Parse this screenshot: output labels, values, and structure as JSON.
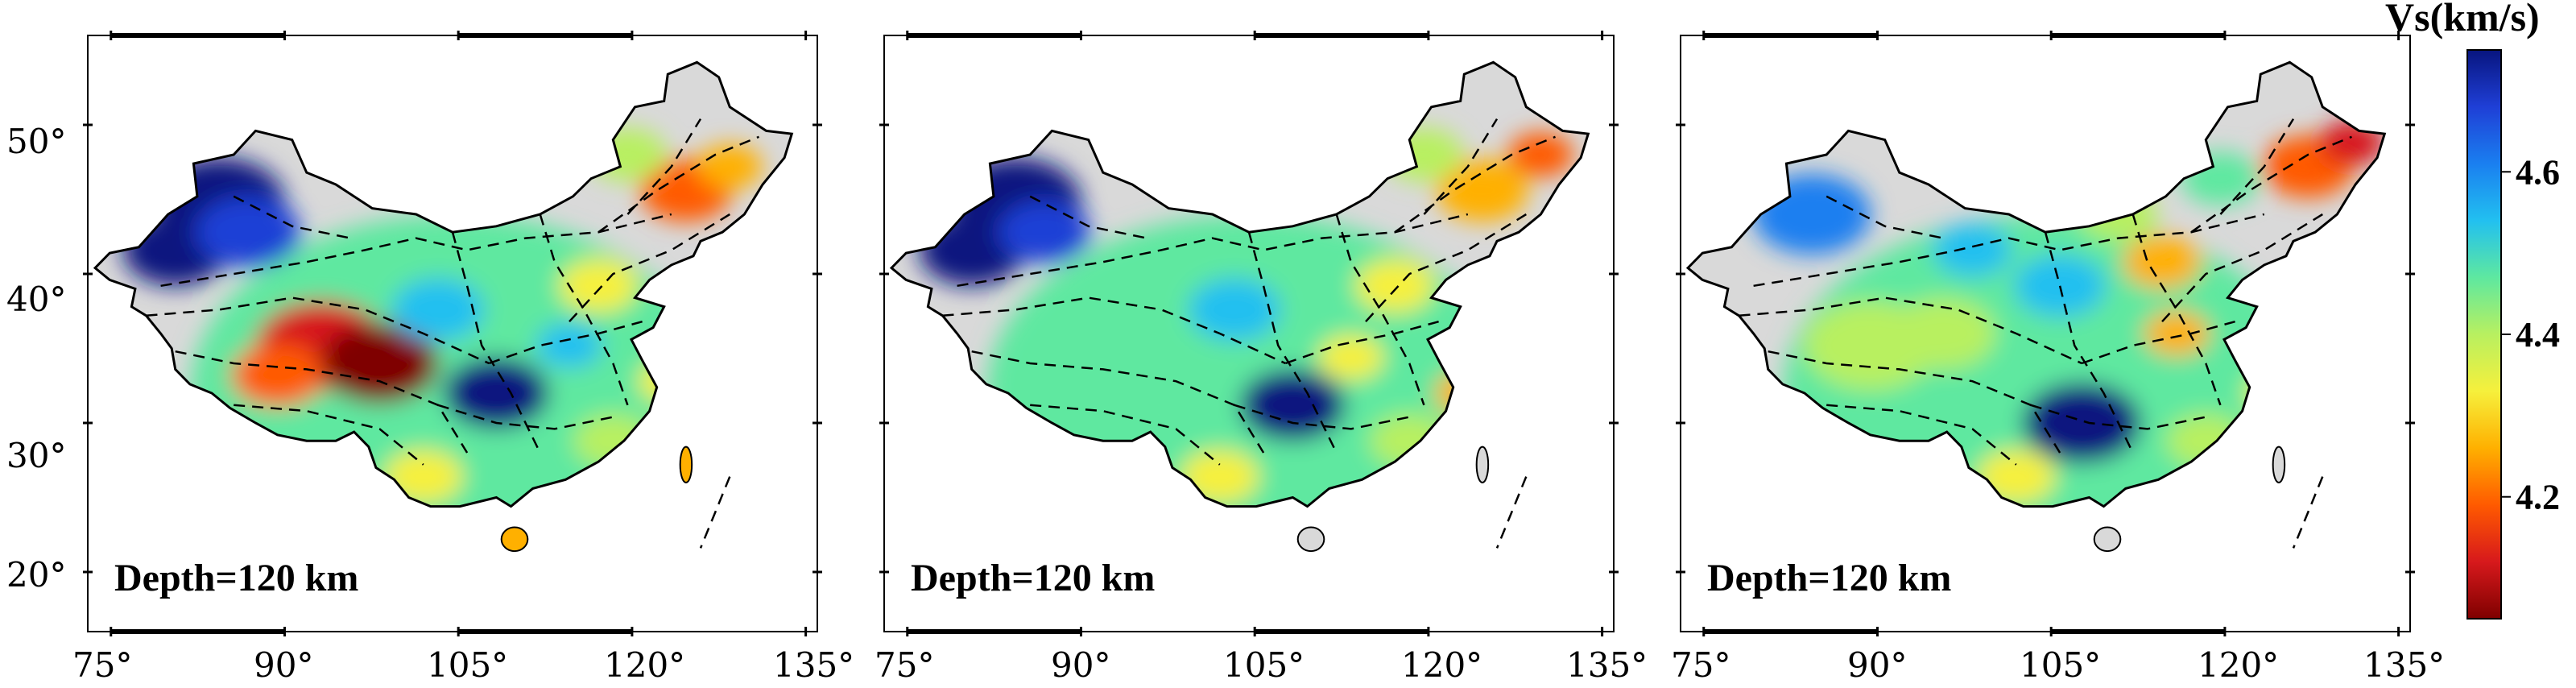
{
  "figure": {
    "panels": [
      {
        "label": "Depth=120 km"
      },
      {
        "label": "Depth=120 km"
      },
      {
        "label": "Depth=120 km"
      }
    ],
    "lon_ticks": [
      75,
      90,
      105,
      120,
      135
    ],
    "lon_tick_labels": [
      "75°",
      "90°",
      "105°",
      "120°",
      "135°"
    ],
    "lat_ticks": [
      20,
      30,
      40,
      50
    ],
    "lat_tick_labels": [
      "20°",
      "30°",
      "40°",
      "50°"
    ],
    "lon_range": [
      73,
      136
    ],
    "lat_range": [
      16,
      56
    ],
    "colorbar": {
      "title": "Vs(km/s)",
      "range": [
        4.05,
        4.75
      ],
      "ticks": [
        4.2,
        4.4,
        4.6
      ],
      "tick_labels": [
        "4.2",
        "4.4",
        "4.6"
      ],
      "colors": [
        "#7f0000",
        "#d7191c",
        "#ff5a00",
        "#ffb000",
        "#f6f03c",
        "#b8f060",
        "#5ee8a0",
        "#22c0f0",
        "#1a7ff0",
        "#1f3fd6",
        "#08157f"
      ]
    }
  }
}
